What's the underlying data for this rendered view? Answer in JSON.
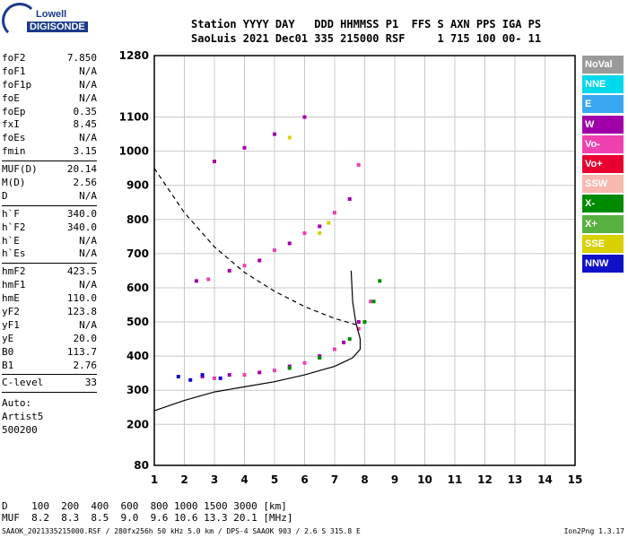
{
  "logo": {
    "line1": "Lowell",
    "line2": "DIGISONDE"
  },
  "header": {
    "row1": "Station YYYY DAY   DDD HHMMSS P1  FFS S AXN PPS IGA PS",
    "row2": "SaoLuis 2021 Dec01 335 215000 RSF     1 715 100 00- 11"
  },
  "params": [
    {
      "k": "foF2",
      "v": "7.850"
    },
    {
      "k": "foF1",
      "v": "N/A"
    },
    {
      "k": "foF1p",
      "v": "N/A"
    },
    {
      "k": "foE",
      "v": "N/A"
    },
    {
      "k": "foEp",
      "v": "0.35"
    },
    {
      "k": "fxI",
      "v": "8.45"
    },
    {
      "k": "foEs",
      "v": "N/A"
    },
    {
      "k": "fmin",
      "v": "3.15"
    },
    {
      "sep": true
    },
    {
      "k": "MUF(D)",
      "v": "20.14"
    },
    {
      "k": "M(D)",
      "v": "2.56"
    },
    {
      "k": "D",
      "v": "N/A"
    },
    {
      "sep": true
    },
    {
      "k": "h`F",
      "v": "340.0"
    },
    {
      "k": "h`F2",
      "v": "340.0"
    },
    {
      "k": "h`E",
      "v": "N/A"
    },
    {
      "k": "h`Es",
      "v": "N/A"
    },
    {
      "sep": true
    },
    {
      "k": "hmF2",
      "v": "423.5"
    },
    {
      "k": "hmF1",
      "v": "N/A"
    },
    {
      "k": "hmE",
      "v": "110.0"
    },
    {
      "k": "yF2",
      "v": "123.8"
    },
    {
      "k": "yF1",
      "v": "N/A"
    },
    {
      "k": "yE",
      "v": "20.0"
    },
    {
      "k": "B0",
      "v": "113.7"
    },
    {
      "k": "B1",
      "v": "2.76"
    },
    {
      "sep": true
    },
    {
      "k": "C-level",
      "v": "33"
    },
    {
      "sep": true
    }
  ],
  "auto": [
    "Auto:",
    "Artist5",
    "500200"
  ],
  "legend": [
    {
      "label": "NoVal",
      "color": "#9a9a9a"
    },
    {
      "label": "NNE",
      "color": "#00d8ec"
    },
    {
      "label": "E",
      "color": "#3aa8f0"
    },
    {
      "label": "W",
      "color": "#a000a8"
    },
    {
      "label": "Vo-",
      "color": "#f040b0"
    },
    {
      "label": "Vo+",
      "color": "#e80030"
    },
    {
      "label": "SSW",
      "color": "#f8b8b0"
    },
    {
      "label": "X-",
      "color": "#008a00"
    },
    {
      "label": "X+",
      "color": "#58b040"
    },
    {
      "label": "SSE",
      "color": "#d8d000"
    },
    {
      "label": "NNW",
      "color": "#1010c8"
    }
  ],
  "bottom": {
    "d_row": "D    100  200  400  600  800 1000 1500 3000 [km]",
    "muf_row": "MUF  8.2  8.3  8.5  9.0  9.6 10.6 13.3 20.1 [MHz]"
  },
  "footer": {
    "left": "SAAOK_2021335215000.RSF / 280fx256h 50 kHz 5.0 km / DPS-4 SAAOK 903 / 2.6 S 315.8 E",
    "right": "Ion2Png 1.3.17"
  },
  "chart_data": {
    "type": "scatter",
    "title": "",
    "xlabel": "",
    "ylabel": "",
    "xlim": [
      1,
      15
    ],
    "ylim": [
      80,
      1280
    ],
    "x_ticks": [
      1,
      2,
      3,
      4,
      5,
      6,
      7,
      8,
      9,
      10,
      11,
      12,
      13,
      14,
      15
    ],
    "y_ticks": [
      80,
      200,
      300,
      400,
      500,
      600,
      700,
      800,
      900,
      1000,
      1100,
      1280
    ],
    "grid": true,
    "series": [
      {
        "name": "W",
        "color": "#a000a8",
        "points": [
          [
            2.6,
            340
          ],
          [
            3.5,
            345
          ],
          [
            4.5,
            352
          ],
          [
            5.5,
            370
          ],
          [
            6.5,
            400
          ],
          [
            7.3,
            440
          ],
          [
            7.8,
            500
          ],
          [
            2.4,
            620
          ],
          [
            3.5,
            650
          ],
          [
            4.5,
            680
          ],
          [
            5.5,
            730
          ],
          [
            6.5,
            780
          ],
          [
            7.5,
            860
          ],
          [
            3.0,
            970
          ],
          [
            4.0,
            1010
          ],
          [
            5.0,
            1050
          ],
          [
            6.0,
            1100
          ]
        ]
      },
      {
        "name": "Vo-",
        "color": "#f040b0",
        "points": [
          [
            3.0,
            335
          ],
          [
            4.0,
            345
          ],
          [
            5.0,
            358
          ],
          [
            6.0,
            380
          ],
          [
            7.0,
            420
          ],
          [
            7.8,
            480
          ],
          [
            8.2,
            560
          ],
          [
            2.8,
            625
          ],
          [
            4.0,
            665
          ],
          [
            5.0,
            710
          ],
          [
            6.0,
            760
          ],
          [
            7.0,
            820
          ],
          [
            7.8,
            960
          ]
        ]
      },
      {
        "name": "X-",
        "color": "#008a00",
        "points": [
          [
            5.5,
            365
          ],
          [
            6.5,
            395
          ],
          [
            7.5,
            450
          ],
          [
            8.0,
            500
          ],
          [
            8.3,
            560
          ],
          [
            8.5,
            620
          ]
        ]
      },
      {
        "name": "NNW",
        "color": "#1010c8",
        "points": [
          [
            1.8,
            340
          ],
          [
            2.2,
            330
          ],
          [
            2.6,
            345
          ],
          [
            3.2,
            335
          ]
        ]
      },
      {
        "name": "SSE",
        "color": "#d8d000",
        "points": [
          [
            6.5,
            760
          ],
          [
            6.8,
            790
          ],
          [
            5.5,
            1040
          ]
        ]
      },
      {
        "name": "hmF2 profile",
        "color": "#000000",
        "points": [
          [
            1.0,
            240
          ],
          [
            2.0,
            270
          ],
          [
            3.0,
            295
          ],
          [
            4.0,
            310
          ],
          [
            5.0,
            325
          ],
          [
            6.0,
            345
          ],
          [
            7.0,
            370
          ],
          [
            7.6,
            395
          ],
          [
            7.85,
            420
          ],
          [
            7.85,
            450
          ],
          [
            7.7,
            500
          ],
          [
            7.6,
            560
          ],
          [
            7.55,
            650
          ]
        ]
      },
      {
        "name": "MUF curve",
        "color": "#000000",
        "points": [
          [
            1.0,
            950
          ],
          [
            2.0,
            820
          ],
          [
            3.0,
            720
          ],
          [
            4.0,
            645
          ],
          [
            5.0,
            590
          ],
          [
            6.0,
            545
          ],
          [
            7.0,
            510
          ],
          [
            7.8,
            490
          ]
        ]
      }
    ]
  }
}
